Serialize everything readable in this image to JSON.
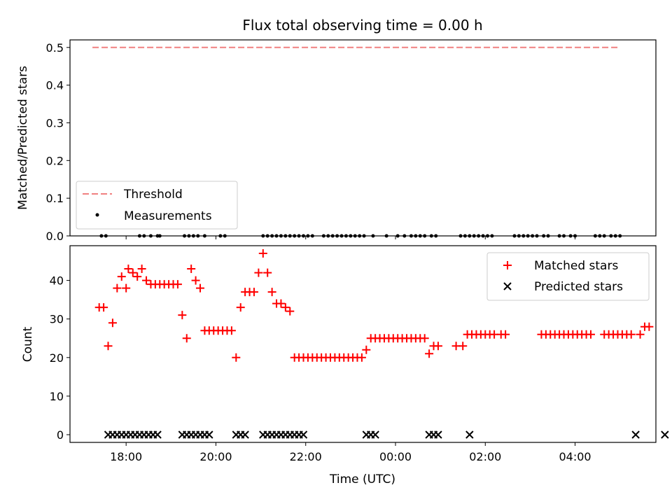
{
  "chart_data": [
    {
      "type": "line",
      "title": "Flux total observing time = 0.00 h",
      "xlabel": "",
      "ylabel": "Matched/Predicted stars",
      "ylim": [
        0,
        0.52
      ],
      "yticks": [
        0.0,
        0.1,
        0.2,
        0.3,
        0.4,
        0.5
      ],
      "ytick_labels": [
        "0.0",
        "0.1",
        "0.2",
        "0.3",
        "0.4",
        "0.5"
      ],
      "xlim_hours": [
        16.75,
        29.8
      ],
      "x_unit": "hours since 00:00 UTC of first day",
      "threshold": {
        "name": "Threshold",
        "value": 0.5,
        "x_range": [
          17.25,
          29.0
        ],
        "color": "#f08080"
      },
      "measurements": {
        "name": "Measurements",
        "value": 0.0,
        "x": [
          17.45,
          17.55,
          18.3,
          18.4,
          18.55,
          18.7,
          18.75,
          19.3,
          19.4,
          19.5,
          19.6,
          19.75,
          20.1,
          20.2,
          21.05,
          21.15,
          21.25,
          21.35,
          21.45,
          21.55,
          21.65,
          21.75,
          21.85,
          21.95,
          22.05,
          22.15,
          22.4,
          22.5,
          22.6,
          22.7,
          22.8,
          22.9,
          23.0,
          23.1,
          23.2,
          23.3,
          23.5,
          23.8,
          24.05,
          24.2,
          24.35,
          24.45,
          24.55,
          24.65,
          24.8,
          24.9,
          25.45,
          25.55,
          25.65,
          25.75,
          25.85,
          25.95,
          26.05,
          26.15,
          26.65,
          26.75,
          26.85,
          26.95,
          27.05,
          27.15,
          27.3,
          27.4,
          27.65,
          27.75,
          27.9,
          28.0,
          28.45,
          28.55,
          28.65,
          28.8,
          28.9,
          29.0
        ]
      }
    },
    {
      "type": "scatter",
      "xlabel": "Time (UTC)",
      "ylabel": "Count",
      "ylim": [
        -2,
        49
      ],
      "yticks": [
        0,
        10,
        20,
        30,
        40
      ],
      "ytick_labels": [
        "0",
        "10",
        "20",
        "30",
        "40"
      ],
      "xlim_hours": [
        16.75,
        29.8
      ],
      "xticks": [
        18,
        20,
        22,
        24,
        26,
        28
      ],
      "xtick_labels": [
        "18:00",
        "20:00",
        "22:00",
        "00:00",
        "02:00",
        "04:00"
      ],
      "series": [
        {
          "name": "Matched stars",
          "marker": "+",
          "color": "#ff0000",
          "points": [
            [
              17.4,
              33
            ],
            [
              17.5,
              33
            ],
            [
              17.6,
              23
            ],
            [
              17.7,
              29
            ],
            [
              17.8,
              38
            ],
            [
              17.9,
              41
            ],
            [
              18.0,
              38
            ],
            [
              18.05,
              43
            ],
            [
              18.15,
              42
            ],
            [
              18.25,
              41
            ],
            [
              18.35,
              43
            ],
            [
              18.45,
              40
            ],
            [
              18.55,
              39
            ],
            [
              18.65,
              39
            ],
            [
              18.75,
              39
            ],
            [
              18.85,
              39
            ],
            [
              18.95,
              39
            ],
            [
              19.05,
              39
            ],
            [
              19.15,
              39
            ],
            [
              19.25,
              31
            ],
            [
              19.35,
              25
            ],
            [
              19.45,
              43
            ],
            [
              19.55,
              40
            ],
            [
              19.65,
              38
            ],
            [
              19.75,
              27
            ],
            [
              19.85,
              27
            ],
            [
              19.95,
              27
            ],
            [
              20.05,
              27
            ],
            [
              20.15,
              27
            ],
            [
              20.25,
              27
            ],
            [
              20.35,
              27
            ],
            [
              20.45,
              20
            ],
            [
              20.55,
              33
            ],
            [
              20.65,
              37
            ],
            [
              20.75,
              37
            ],
            [
              20.85,
              37
            ],
            [
              20.95,
              42
            ],
            [
              21.05,
              47
            ],
            [
              21.15,
              42
            ],
            [
              21.25,
              37
            ],
            [
              21.35,
              34
            ],
            [
              21.45,
              34
            ],
            [
              21.55,
              33
            ],
            [
              21.65,
              32
            ],
            [
              21.75,
              20
            ],
            [
              21.85,
              20
            ],
            [
              21.95,
              20
            ],
            [
              22.05,
              20
            ],
            [
              22.15,
              20
            ],
            [
              22.25,
              20
            ],
            [
              22.35,
              20
            ],
            [
              22.45,
              20
            ],
            [
              22.55,
              20
            ],
            [
              22.65,
              20
            ],
            [
              22.75,
              20
            ],
            [
              22.85,
              20
            ],
            [
              22.95,
              20
            ],
            [
              23.05,
              20
            ],
            [
              23.15,
              20
            ],
            [
              23.25,
              20
            ],
            [
              23.35,
              22
            ],
            [
              23.45,
              25
            ],
            [
              23.55,
              25
            ],
            [
              23.65,
              25
            ],
            [
              23.75,
              25
            ],
            [
              23.85,
              25
            ],
            [
              23.95,
              25
            ],
            [
              24.05,
              25
            ],
            [
              24.15,
              25
            ],
            [
              24.25,
              25
            ],
            [
              24.35,
              25
            ],
            [
              24.45,
              25
            ],
            [
              24.55,
              25
            ],
            [
              24.65,
              25
            ],
            [
              24.75,
              21
            ],
            [
              24.85,
              23
            ],
            [
              24.95,
              23
            ],
            [
              25.35,
              23
            ],
            [
              25.5,
              23
            ],
            [
              25.6,
              26
            ],
            [
              25.7,
              26
            ],
            [
              25.8,
              26
            ],
            [
              25.9,
              26
            ],
            [
              26.0,
              26
            ],
            [
              26.1,
              26
            ],
            [
              26.2,
              26
            ],
            [
              26.35,
              26
            ],
            [
              26.45,
              26
            ],
            [
              27.25,
              26
            ],
            [
              27.35,
              26
            ],
            [
              27.45,
              26
            ],
            [
              27.55,
              26
            ],
            [
              27.65,
              26
            ],
            [
              27.75,
              26
            ],
            [
              27.85,
              26
            ],
            [
              27.95,
              26
            ],
            [
              28.05,
              26
            ],
            [
              28.15,
              26
            ],
            [
              28.25,
              26
            ],
            [
              28.35,
              26
            ],
            [
              28.65,
              26
            ],
            [
              28.75,
              26
            ],
            [
              28.85,
              26
            ],
            [
              28.95,
              26
            ],
            [
              29.05,
              26
            ],
            [
              29.15,
              26
            ],
            [
              29.25,
              26
            ],
            [
              29.45,
              26
            ],
            [
              29.55,
              28
            ],
            [
              29.65,
              28
            ]
          ]
        },
        {
          "name": "Predicted stars",
          "marker": "x",
          "color": "#000000",
          "points": [
            [
              17.6,
              0
            ],
            [
              17.7,
              0
            ],
            [
              17.8,
              0
            ],
            [
              17.9,
              0
            ],
            [
              18.0,
              0
            ],
            [
              18.1,
              0
            ],
            [
              18.2,
              0
            ],
            [
              18.3,
              0
            ],
            [
              18.4,
              0
            ],
            [
              18.5,
              0
            ],
            [
              18.6,
              0
            ],
            [
              18.7,
              0
            ],
            [
              19.25,
              0
            ],
            [
              19.35,
              0
            ],
            [
              19.45,
              0
            ],
            [
              19.55,
              0
            ],
            [
              19.65,
              0
            ],
            [
              19.75,
              0
            ],
            [
              19.85,
              0
            ],
            [
              20.45,
              0
            ],
            [
              20.55,
              0
            ],
            [
              20.65,
              0
            ],
            [
              21.05,
              0
            ],
            [
              21.15,
              0
            ],
            [
              21.25,
              0
            ],
            [
              21.35,
              0
            ],
            [
              21.45,
              0
            ],
            [
              21.55,
              0
            ],
            [
              21.65,
              0
            ],
            [
              21.75,
              0
            ],
            [
              21.85,
              0
            ],
            [
              21.95,
              0
            ],
            [
              23.35,
              0
            ],
            [
              23.45,
              0
            ],
            [
              23.55,
              0
            ],
            [
              24.75,
              0
            ],
            [
              24.85,
              0
            ],
            [
              24.95,
              0
            ],
            [
              25.65,
              0
            ],
            [
              29.35,
              0
            ],
            [
              30.0,
              0
            ]
          ]
        }
      ]
    }
  ],
  "legends": {
    "top": {
      "threshold": "Threshold",
      "measurements": "Measurements"
    },
    "bottom": {
      "matched": "Matched stars",
      "predicted": "Predicted stars"
    }
  }
}
